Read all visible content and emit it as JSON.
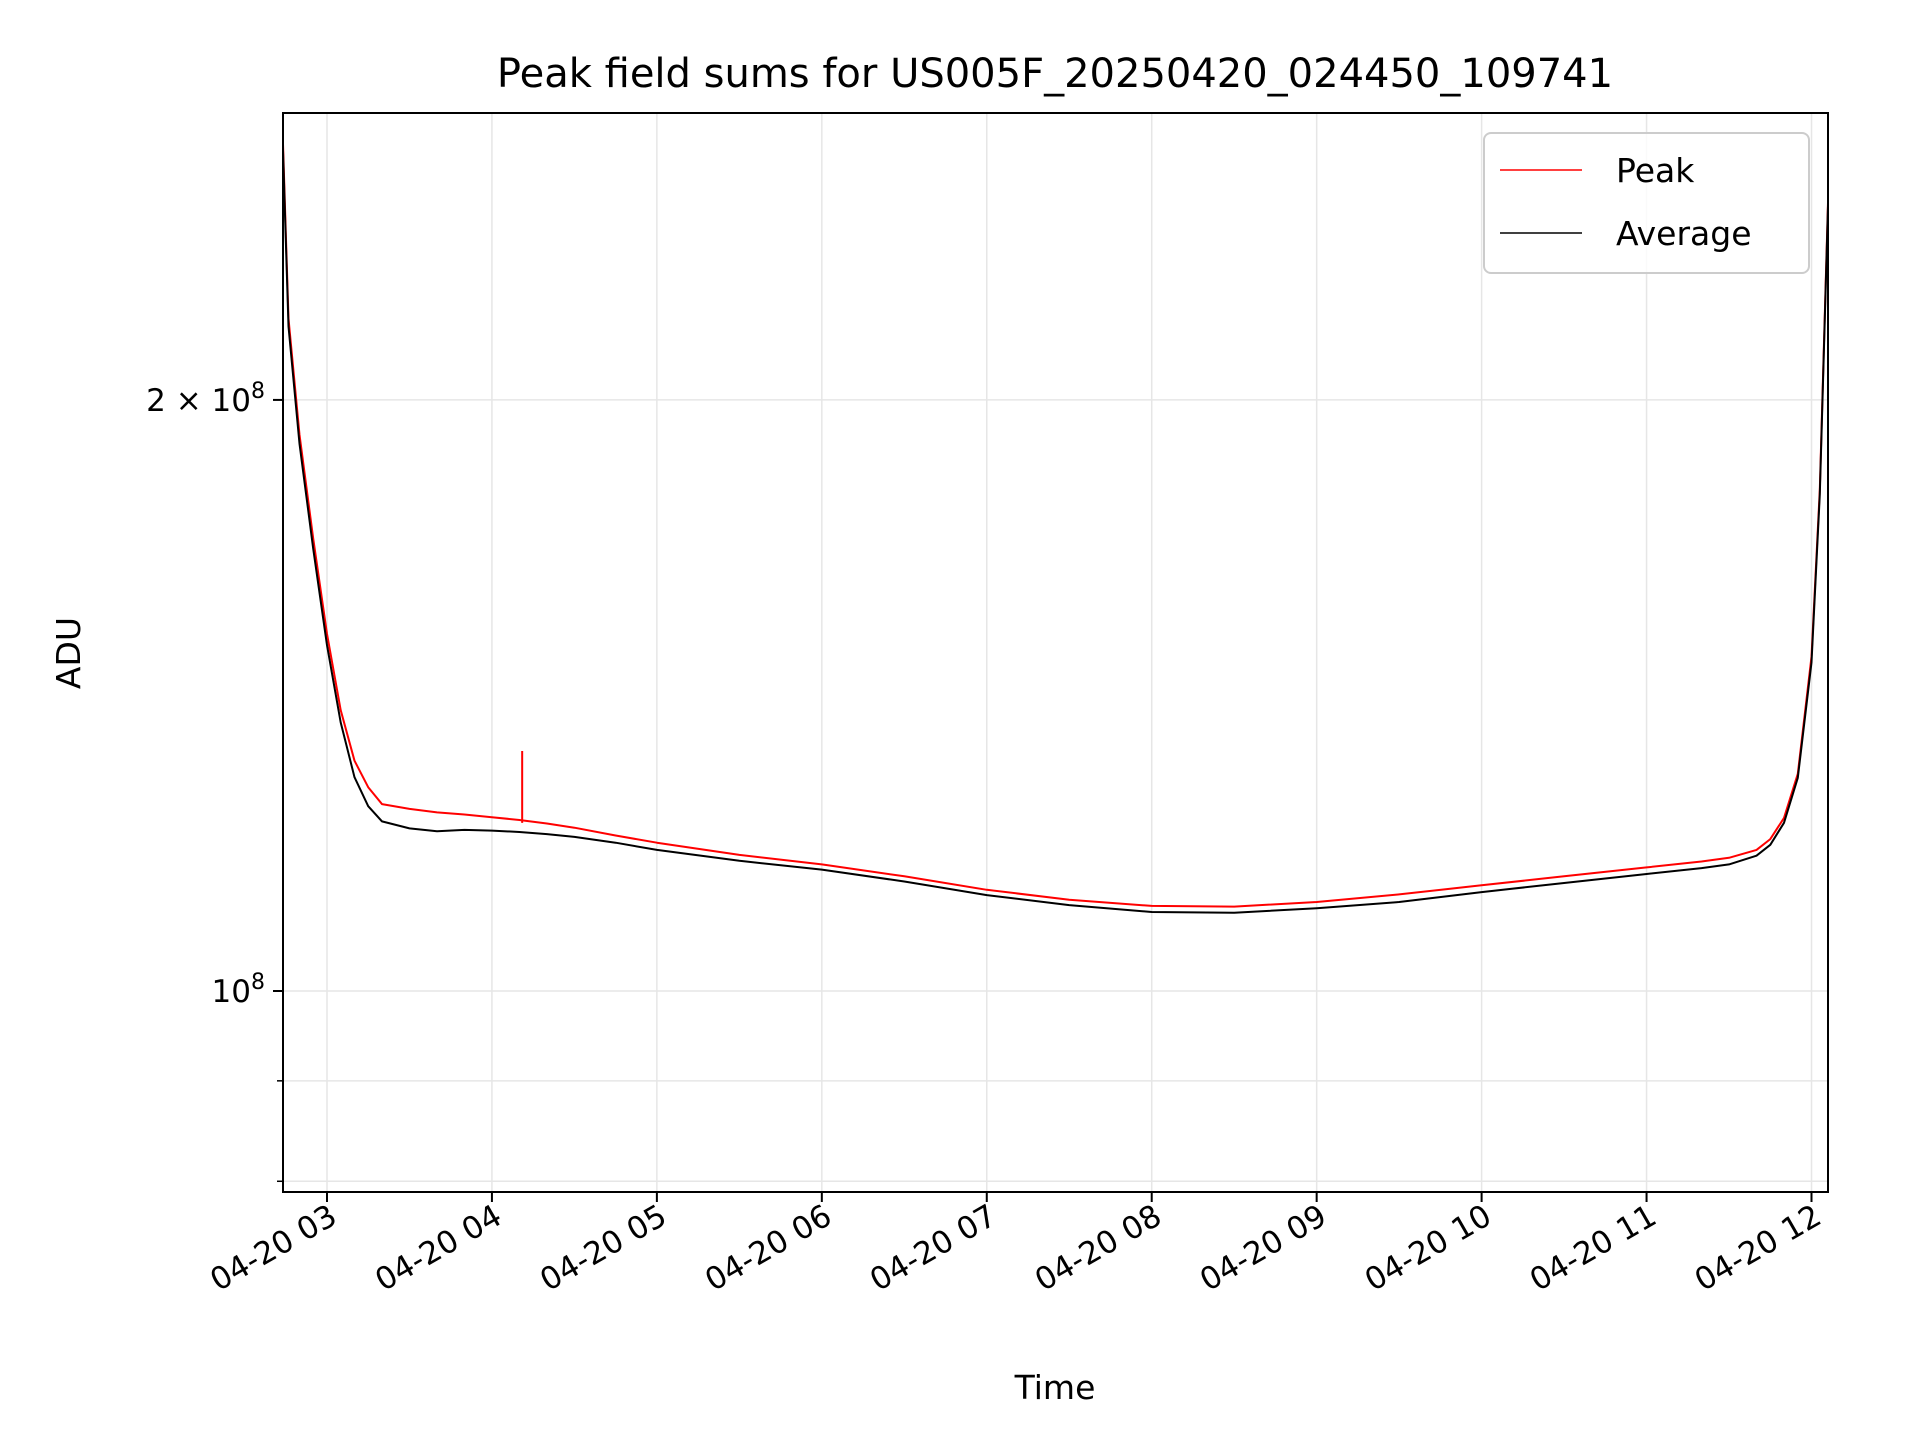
{
  "chart_data": {
    "type": "line",
    "title": "Peak field sums for US005F_20250420_024450_109741",
    "xlabel": "Time",
    "ylabel": "ADU",
    "y_scale": "log",
    "ylim": [
      79000000,
      280000000
    ],
    "xlim": [
      "04-20 02:44",
      "04-20 12:06"
    ],
    "grid": true,
    "legend_position": "top-right",
    "x_ticks": [
      "04-20 03",
      "04-20 04",
      "04-20 05",
      "04-20 06",
      "04-20 07",
      "04-20 08",
      "04-20 09",
      "04-20 10",
      "04-20 11",
      "04-20 12"
    ],
    "y_ticks": [
      {
        "value": 200000000,
        "label_mant": "2 × 10",
        "label_exp": "8"
      },
      {
        "value": 100000000,
        "label_mant": "10",
        "label_exp": "8"
      }
    ],
    "y_minor_ticks": [
      90000000,
      80000000
    ],
    "x": [
      "04-20 02:44",
      "04-20 02:46",
      "04-20 02:50",
      "04-20 02:55",
      "04-20 03:00",
      "04-20 03:05",
      "04-20 03:10",
      "04-20 03:15",
      "04-20 03:20",
      "04-20 03:30",
      "04-20 03:40",
      "04-20 03:50",
      "04-20 04:00",
      "04-20 04:10",
      "04-20 04:20",
      "04-20 04:30",
      "04-20 04:45",
      "04-20 05:00",
      "04-20 05:30",
      "04-20 06:00",
      "04-20 06:30",
      "04-20 07:00",
      "04-20 07:30",
      "04-20 08:00",
      "04-20 08:30",
      "04-20 09:00",
      "04-20 09:30",
      "04-20 10:00",
      "04-20 10:30",
      "04-20 11:00",
      "04-20 11:20",
      "04-20 11:30",
      "04-20 11:40",
      "04-20 11:45",
      "04-20 11:50",
      "04-20 11:55",
      "04-20 12:00",
      "04-20 12:03",
      "04-20 12:06"
    ],
    "series": [
      {
        "name": "Peak",
        "color": "#ff0000",
        "values": [
          270000000,
          220000000,
          192000000,
          170000000,
          152000000,
          139000000,
          131000000,
          127000000,
          124500000,
          123800000,
          123300000,
          123000000,
          122600000,
          122200000,
          121700000,
          121100000,
          120000000,
          119000000,
          117300000,
          116000000,
          114400000,
          112600000,
          111300000,
          110500000,
          110400000,
          111000000,
          112000000,
          113200000,
          114400000,
          115600000,
          116400000,
          116900000,
          118000000,
          119500000,
          122500000,
          129000000,
          148000000,
          180000000,
          252000000
        ]
      },
      {
        "name": "Average",
        "color": "#000000",
        "values": [
          268000000,
          218000000,
          190000000,
          168000000,
          150000000,
          137000000,
          128500000,
          124200000,
          122000000,
          121000000,
          120600000,
          120800000,
          120700000,
          120500000,
          120200000,
          119800000,
          119000000,
          118000000,
          116500000,
          115300000,
          113700000,
          111900000,
          110600000,
          109700000,
          109600000,
          110200000,
          111000000,
          112300000,
          113500000,
          114700000,
          115500000,
          116000000,
          117200000,
          118700000,
          121800000,
          128400000,
          147000000,
          179000000,
          251000000
        ]
      }
    ],
    "annotations": [
      {
        "series": "Peak",
        "x": "04-20 04:11",
        "value": 132500000,
        "note": "spike"
      }
    ]
  }
}
